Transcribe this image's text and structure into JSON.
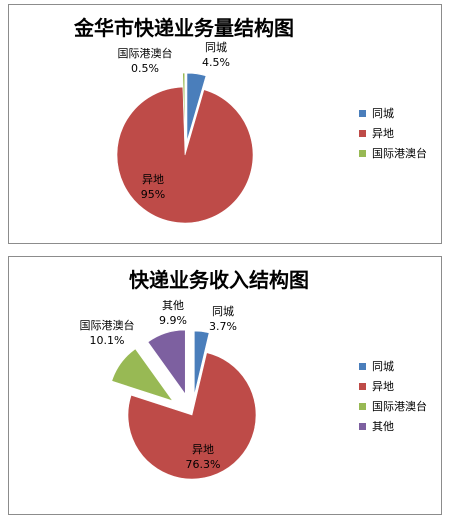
{
  "chart_data": [
    {
      "type": "pie",
      "title": "金华市快递业务量结构图",
      "categories": [
        "同城",
        "异地",
        "国际港澳台"
      ],
      "values": [
        4.5,
        95,
        0.5
      ],
      "value_labels": [
        "4.5%",
        "95%",
        "0.5%"
      ],
      "colors": [
        "#4a7ebb",
        "#be4b48",
        "#98b954"
      ],
      "exploded": true,
      "legend": "right"
    },
    {
      "type": "pie",
      "title": "快递业务收入结构图",
      "categories": [
        "同城",
        "异地",
        "国际港澳台",
        "其他"
      ],
      "values": [
        3.7,
        76.3,
        10.1,
        9.9
      ],
      "value_labels": [
        "3.7%",
        "76.3%",
        "10.1%",
        "9.9%"
      ],
      "colors": [
        "#4a7ebb",
        "#be4b48",
        "#98b954",
        "#7d60a0"
      ],
      "exploded": true,
      "legend": "right"
    }
  ]
}
